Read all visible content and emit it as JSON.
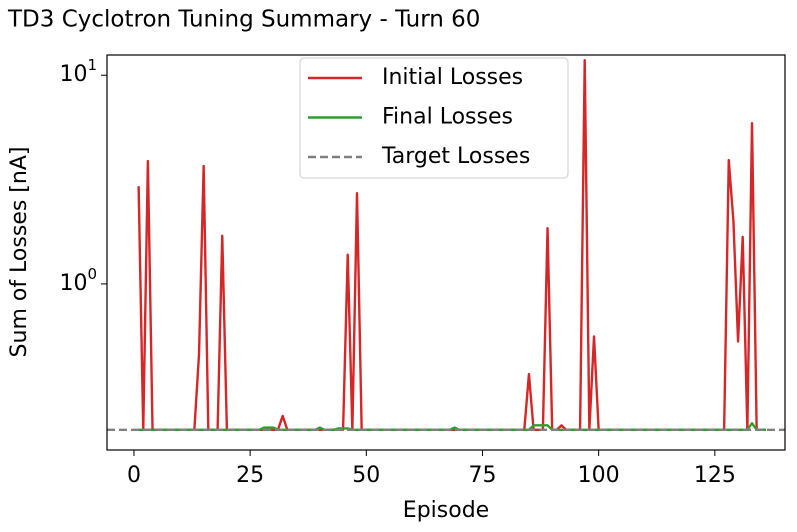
{
  "chart_data": {
    "type": "line",
    "title": "TD3 Cyclotron Tuning Summary - Turn 60",
    "xlabel": "Episode",
    "ylabel": "Sum of Losses [nA]",
    "yscale": "log",
    "legend": "upper center",
    "xlim": [
      -5.8,
      140.1
    ],
    "xticks": [
      0,
      25,
      50,
      75,
      100,
      125
    ],
    "ylim": [
      0.16,
      12.5
    ],
    "yticks": [
      {
        "value": 1,
        "label": "10",
        "exponent": "0"
      },
      {
        "value": 10,
        "label": "10",
        "exponent": "1"
      }
    ],
    "x": [
      1,
      2,
      3,
      4,
      5,
      6,
      7,
      8,
      9,
      10,
      11,
      12,
      13,
      14,
      15,
      16,
      17,
      18,
      19,
      20,
      21,
      22,
      23,
      24,
      25,
      26,
      27,
      28,
      29,
      30,
      31,
      32,
      33,
      34,
      35,
      36,
      37,
      38,
      39,
      40,
      41,
      42,
      43,
      44,
      45,
      46,
      47,
      48,
      49,
      50,
      51,
      52,
      53,
      54,
      55,
      56,
      57,
      58,
      59,
      60,
      61,
      62,
      63,
      64,
      65,
      66,
      67,
      68,
      69,
      70,
      71,
      72,
      73,
      74,
      75,
      76,
      77,
      78,
      79,
      80,
      81,
      82,
      83,
      84,
      85,
      86,
      87,
      88,
      89,
      90,
      91,
      92,
      93,
      94,
      95,
      96,
      97,
      98,
      99,
      100,
      101,
      102,
      103,
      104,
      105,
      106,
      107,
      108,
      109,
      110,
      111,
      112,
      113,
      114,
      115,
      116,
      117,
      118,
      119,
      120,
      121,
      122,
      123,
      124,
      125,
      126,
      127,
      128,
      129,
      130,
      131,
      132,
      133,
      134,
      135,
      136
    ],
    "series": [
      {
        "name": "Initial Losses",
        "color": "#d62728",
        "values": [
          2.94,
          0.2,
          3.88,
          0.2,
          0.2,
          0.2,
          0.2,
          0.2,
          0.2,
          0.2,
          0.2,
          0.2,
          0.2,
          0.46,
          3.67,
          0.2,
          0.2,
          0.2,
          1.7,
          0.2,
          0.2,
          0.2,
          0.2,
          0.2,
          0.2,
          0.2,
          0.2,
          0.2,
          0.2,
          0.2,
          0.2,
          0.233,
          0.2,
          0.2,
          0.2,
          0.2,
          0.2,
          0.2,
          0.2,
          0.2,
          0.2,
          0.2,
          0.2,
          0.2,
          0.2,
          1.38,
          0.2,
          2.72,
          0.2,
          0.2,
          0.2,
          0.2,
          0.2,
          0.2,
          0.2,
          0.2,
          0.2,
          0.2,
          0.2,
          0.2,
          0.2,
          0.2,
          0.2,
          0.2,
          0.2,
          0.2,
          0.2,
          0.2,
          0.2,
          0.2,
          0.2,
          0.2,
          0.2,
          0.2,
          0.2,
          0.2,
          0.2,
          0.2,
          0.2,
          0.2,
          0.2,
          0.2,
          0.2,
          0.2,
          0.37,
          0.2,
          0.2,
          0.2,
          1.85,
          0.2,
          0.2,
          0.21,
          0.2,
          0.2,
          0.2,
          0.2,
          11.8,
          0.2,
          0.56,
          0.2,
          0.2,
          0.2,
          0.2,
          0.2,
          0.2,
          0.2,
          0.2,
          0.2,
          0.2,
          0.2,
          0.2,
          0.2,
          0.2,
          0.2,
          0.2,
          0.2,
          0.2,
          0.2,
          0.2,
          0.2,
          0.2,
          0.2,
          0.2,
          0.2,
          0.2,
          0.2,
          0.2,
          3.92,
          2.0,
          0.53,
          1.68,
          0.2,
          5.89,
          0.2,
          0.2,
          0.2
        ]
      },
      {
        "name": "Final Losses",
        "color": "#2ca02c",
        "values": [
          0.2,
          0.2,
          0.2,
          0.2,
          0.2,
          0.2,
          0.2,
          0.2,
          0.2,
          0.2,
          0.2,
          0.2,
          0.2,
          0.2,
          0.2,
          0.2,
          0.2,
          0.2,
          0.2,
          0.2,
          0.2,
          0.2,
          0.2,
          0.2,
          0.2,
          0.2,
          0.2,
          0.205,
          0.205,
          0.205,
          0.2,
          0.2,
          0.2,
          0.2,
          0.2,
          0.2,
          0.2,
          0.2,
          0.2,
          0.205,
          0.2,
          0.2,
          0.2,
          0.203,
          0.203,
          0.203,
          0.2,
          0.2,
          0.2,
          0.2,
          0.2,
          0.2,
          0.2,
          0.2,
          0.2,
          0.2,
          0.2,
          0.2,
          0.2,
          0.2,
          0.2,
          0.2,
          0.2,
          0.2,
          0.2,
          0.2,
          0.2,
          0.2,
          0.205,
          0.2,
          0.2,
          0.2,
          0.2,
          0.2,
          0.2,
          0.2,
          0.2,
          0.2,
          0.2,
          0.2,
          0.2,
          0.2,
          0.2,
          0.2,
          0.2,
          0.21,
          0.21,
          0.21,
          0.21,
          0.2,
          0.2,
          0.2,
          0.2,
          0.2,
          0.2,
          0.2,
          0.2,
          0.2,
          0.2,
          0.2,
          0.2,
          0.2,
          0.2,
          0.2,
          0.2,
          0.2,
          0.2,
          0.2,
          0.2,
          0.2,
          0.2,
          0.2,
          0.2,
          0.2,
          0.2,
          0.2,
          0.2,
          0.2,
          0.2,
          0.2,
          0.2,
          0.2,
          0.2,
          0.2,
          0.2,
          0.2,
          0.2,
          0.2,
          0.2,
          0.2,
          0.2,
          0.2,
          0.215,
          0.2,
          0.2,
          0.2
        ]
      },
      {
        "name": "Target Losses",
        "color": "#808080",
        "linestyle": "dashed",
        "value": 0.2
      }
    ]
  }
}
